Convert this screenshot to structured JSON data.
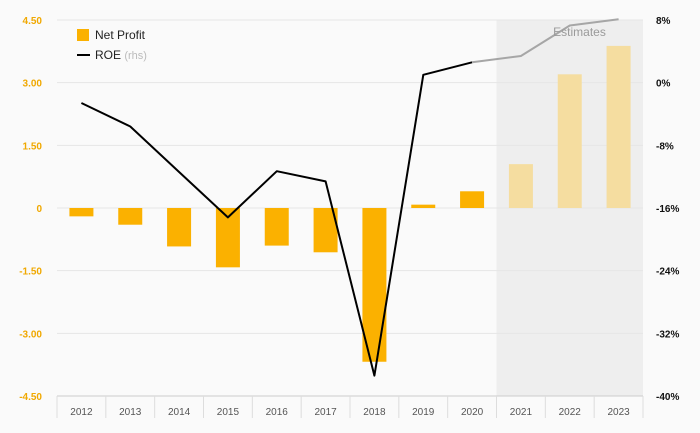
{
  "chart_data": {
    "type": "bar",
    "categories": [
      "2012",
      "2013",
      "2014",
      "2015",
      "2016",
      "2017",
      "2018",
      "2019",
      "2020",
      "2021",
      "2022",
      "2023"
    ],
    "estimates_from": "2021",
    "estimates_label": "Estimates",
    "series": [
      {
        "name": "Net Profit",
        "axis": "left",
        "kind": "bar",
        "values": [
          -0.2,
          -0.4,
          -0.92,
          -1.42,
          -0.9,
          -1.06,
          -3.68,
          0.08,
          0.4,
          1.05,
          3.2,
          3.88
        ]
      },
      {
        "name": "ROE",
        "axis_note": "(rhs)",
        "axis": "right",
        "kind": "line",
        "values": [
          -2.6,
          -5.6,
          -11.4,
          -17.2,
          -11.3,
          -12.6,
          -37.4,
          1.0,
          2.6,
          3.4,
          7.3,
          8.1
        ]
      }
    ],
    "left_axis": {
      "ylim": [
        -4.5,
        4.5
      ],
      "ticks": [
        "4.50",
        "3.00",
        "1.50",
        "0",
        "-1.50",
        "-3.00",
        "-4.50"
      ],
      "tick_values": [
        4.5,
        3.0,
        1.5,
        0,
        -1.5,
        -3.0,
        -4.5
      ]
    },
    "right_axis": {
      "ylim": [
        -40,
        8
      ],
      "ticks": [
        "8%",
        "0%",
        "-8%",
        "-16%",
        "-24%",
        "-32%",
        "-40%"
      ],
      "tick_values": [
        8,
        0,
        -8,
        -16,
        -24,
        -32,
        -40
      ]
    },
    "grid": true,
    "legend_position": "top-left",
    "colors": {
      "bar": "#fbb100",
      "bar_estimate": "#f5dda0",
      "line": "#000000",
      "line_estimate": "#a6a6a6",
      "left_ticks": "#f0a800",
      "estimate_bg": "#eeeeee"
    }
  }
}
